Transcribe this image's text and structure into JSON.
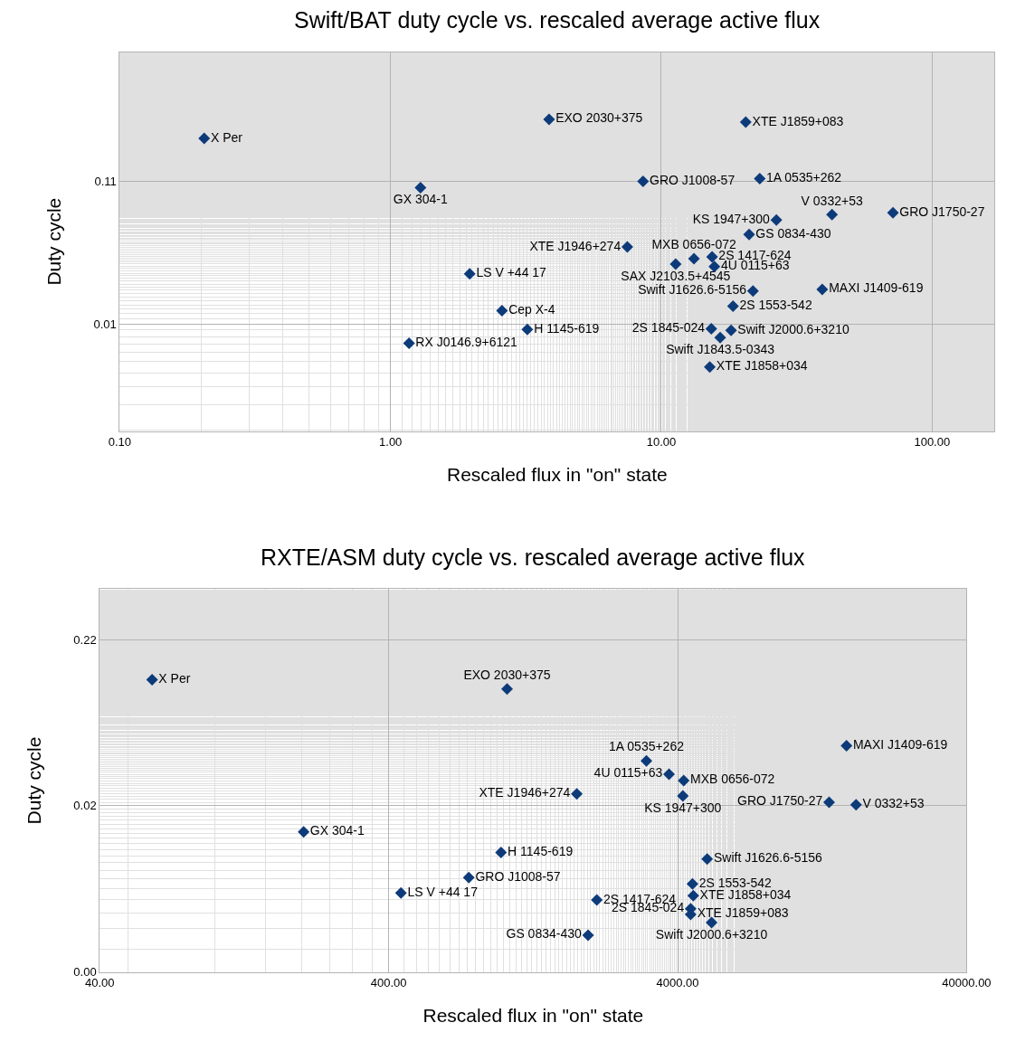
{
  "chart_data": [
    {
      "type": "scatter",
      "title": "Swift/BAT duty cycle vs. rescaled average active flux",
      "xlabel": "Rescaled flux in \"on\" state",
      "ylabel": "Duty cycle",
      "log": "xy",
      "grid": true,
      "legend": false,
      "marker": "diamond",
      "xlim": [
        0.1,
        170
      ],
      "xticks": [
        {
          "value": 0.1,
          "label": "0.10"
        },
        {
          "value": 1,
          "label": "1.00"
        },
        {
          "value": 10,
          "label": "10.00"
        },
        {
          "value": 100,
          "label": "100.00"
        }
      ],
      "ylim": [
        0.00196,
        0.885
      ],
      "yticks": [
        {
          "value": 0.011,
          "label": "0.01"
        },
        {
          "value": 0.11,
          "label": "0.11"
        }
      ],
      "series": [
        {
          "name": "X Per",
          "color": "#0d3b7a",
          "x": [
            0.205
          ],
          "values": [
            0.22
          ]
        },
        {
          "name": "EXO 2030+375",
          "color": "#0d3b7a",
          "x": [
            3.85
          ],
          "values": [
            0.299
          ]
        },
        {
          "name": "XTE J1859+083",
          "color": "#0d3b7a",
          "x": [
            20.5
          ],
          "values": [
            0.286
          ]
        },
        {
          "name": "GX 304-1",
          "color": "#0d3b7a",
          "x": [
            1.29
          ],
          "values": [
            0.0994
          ]
        },
        {
          "name": "GRO J1008-57",
          "color": "#0d3b7a",
          "x": [
            8.56
          ],
          "values": [
            0.11
          ]
        },
        {
          "name": "1A 0535+262",
          "color": "#0d3b7a",
          "x": [
            23.1
          ],
          "values": [
            0.115
          ]
        },
        {
          "name": "V 0332+53",
          "color": "#0d3b7a",
          "x": [
            42.7
          ],
          "values": [
            0.0644
          ]
        },
        {
          "name": "GRO J1750-27",
          "color": "#0d3b7a",
          "x": [
            71.7
          ],
          "values": [
            0.0663
          ]
        },
        {
          "name": "KS 1947+300",
          "color": "#0d3b7a",
          "x": [
            26.6
          ],
          "values": [
            0.0591
          ]
        },
        {
          "name": "GS 0834-430",
          "color": "#0d3b7a",
          "x": [
            21.1
          ],
          "values": [
            0.0468
          ]
        },
        {
          "name": "XTE J1946+274",
          "color": "#0d3b7a",
          "x": [
            7.49
          ],
          "values": [
            0.0382
          ]
        },
        {
          "name": "MXB 0656-072",
          "color": "#0d3b7a",
          "x": [
            13.2
          ],
          "values": [
            0.0316
          ]
        },
        {
          "name": "2S 1417-624",
          "color": "#0d3b7a",
          "x": [
            15.4
          ],
          "values": [
            0.0326
          ]
        },
        {
          "name": "SAX J2103.5+4545",
          "color": "#0d3b7a",
          "x": [
            11.3
          ],
          "values": [
            0.029
          ]
        },
        {
          "name": "4U 0115+63",
          "color": "#0d3b7a",
          "x": [
            15.7
          ],
          "values": [
            0.0278
          ]
        },
        {
          "name": "LS V +44 17",
          "color": "#0d3b7a",
          "x": [
            1.96
          ],
          "values": [
            0.0248
          ]
        },
        {
          "name": "Swift J1626.6-5156",
          "color": "#0d3b7a",
          "x": [
            21.8
          ],
          "values": [
            0.0188
          ]
        },
        {
          "name": "MAXI J1409-619",
          "color": "#0d3b7a",
          "x": [
            39.3
          ],
          "values": [
            0.0193
          ]
        },
        {
          "name": "2S 1553-542",
          "color": "#0d3b7a",
          "x": [
            18.4
          ],
          "values": [
            0.0147
          ]
        },
        {
          "name": "Cep X-4",
          "color": "#0d3b7a",
          "x": [
            2.58
          ],
          "values": [
            0.0137
          ]
        },
        {
          "name": "H 1145-619",
          "color": "#0d3b7a",
          "x": [
            3.2
          ],
          "values": [
            0.0101
          ]
        },
        {
          "name": "2S 1845-024",
          "color": "#0d3b7a",
          "x": [
            15.3
          ],
          "values": [
            0.0102
          ]
        },
        {
          "name": "Swift J2000.6+3210",
          "color": "#0d3b7a",
          "x": [
            18.1
          ],
          "values": [
            0.00995
          ]
        },
        {
          "name": "Swift J1843.5-0343",
          "color": "#0d3b7a",
          "x": [
            16.5
          ],
          "values": [
            0.00885
          ]
        },
        {
          "name": "RX J0146.9+6121",
          "color": "#0d3b7a",
          "x": [
            1.17
          ],
          "values": [
            0.0081
          ]
        },
        {
          "name": "XTE J1858+034",
          "color": "#0d3b7a",
          "x": [
            15.1
          ],
          "values": [
            0.00551
          ]
        }
      ]
    },
    {
      "type": "scatter",
      "title": "RXTE/ASM duty cycle vs. rescaled average active flux",
      "xlabel": "Rescaled flux in \"on\" state",
      "ylabel": "Duty cycle",
      "log": "xy",
      "grid": true,
      "legend": false,
      "marker": "diamond",
      "xlim": [
        40,
        40000
      ],
      "xticks": [
        {
          "value": 40,
          "label": "40.00"
        },
        {
          "value": 400,
          "label": "400.00"
        },
        {
          "value": 4000,
          "label": "4000.00"
        },
        {
          "value": 40000,
          "label": "40000.00"
        }
      ],
      "ylim": [
        0.0022,
        0.442
      ],
      "yticks": [
        {
          "value": 0.0022,
          "label": "0.00"
        },
        {
          "value": 0.022,
          "label": "0.02"
        },
        {
          "value": 0.22,
          "label": "0.22"
        }
      ],
      "series": [
        {
          "name": "X Per",
          "color": "#0d3b7a",
          "x": [
            60.7
          ],
          "values": [
            0.126
          ]
        },
        {
          "name": "EXO 2030+375",
          "color": "#0d3b7a",
          "x": [
            1027
          ],
          "values": [
            0.111
          ]
        },
        {
          "name": "1A 0535+262",
          "color": "#0d3b7a",
          "x": [
            3118
          ],
          "values": [
            0.041
          ]
        },
        {
          "name": "MAXI J1409-619",
          "color": "#0d3b7a",
          "x": [
            15360
          ],
          "values": [
            0.0506
          ]
        },
        {
          "name": "4U 0115+63",
          "color": "#0d3b7a",
          "x": [
            3733
          ],
          "values": [
            0.0341
          ]
        },
        {
          "name": "MXB 0656-072",
          "color": "#0d3b7a",
          "x": [
            4196
          ],
          "values": [
            0.0312
          ]
        },
        {
          "name": "XTE J1946+274",
          "color": "#0d3b7a",
          "x": [
            1790
          ],
          "values": [
            0.0259
          ]
        },
        {
          "name": "KS 1947+300",
          "color": "#0d3b7a",
          "x": [
            4168
          ],
          "values": [
            0.0252
          ]
        },
        {
          "name": "GRO J1750-27",
          "color": "#0d3b7a",
          "x": [
            13370
          ],
          "values": [
            0.0231
          ]
        },
        {
          "name": "V 0332+53",
          "color": "#0d3b7a",
          "x": [
            16570
          ],
          "values": [
            0.0223
          ]
        },
        {
          "name": "GX 304-1",
          "color": "#0d3b7a",
          "x": [
            203
          ],
          "values": [
            0.0153
          ]
        },
        {
          "name": "H 1145-619",
          "color": "#0d3b7a",
          "x": [
            979
          ],
          "values": [
            0.0115
          ]
        },
        {
          "name": "Swift J1626.6-5156",
          "color": "#0d3b7a",
          "x": [
            5061
          ],
          "values": [
            0.0105
          ]
        },
        {
          "name": "GRO J1008-57",
          "color": "#0d3b7a",
          "x": [
            757
          ],
          "values": [
            0.00813
          ]
        },
        {
          "name": "2S 1553-542",
          "color": "#0d3b7a",
          "x": [
            4500
          ],
          "values": [
            0.00745
          ]
        },
        {
          "name": "LS V +44 17",
          "color": "#0d3b7a",
          "x": [
            441
          ],
          "values": [
            0.00657
          ]
        },
        {
          "name": "XTE J1858+034",
          "color": "#0d3b7a",
          "x": [
            4530
          ],
          "values": [
            0.00632
          ]
        },
        {
          "name": "2S 1417-624",
          "color": "#0d3b7a",
          "x": [
            2100
          ],
          "values": [
            0.00596
          ]
        },
        {
          "name": "2S 1845-024",
          "color": "#0d3b7a",
          "x": [
            4437
          ],
          "values": [
            0.00527
          ]
        },
        {
          "name": "XTE J1859+083",
          "color": "#0d3b7a",
          "x": [
            4437
          ],
          "values": [
            0.00488
          ]
        },
        {
          "name": "Swift J2000.6+3210",
          "color": "#0d3b7a",
          "x": [
            5240
          ],
          "values": [
            0.00436
          ]
        },
        {
          "name": "GS 0834-430",
          "color": "#0d3b7a",
          "x": [
            1959
          ],
          "values": [
            0.00366
          ]
        }
      ]
    }
  ]
}
